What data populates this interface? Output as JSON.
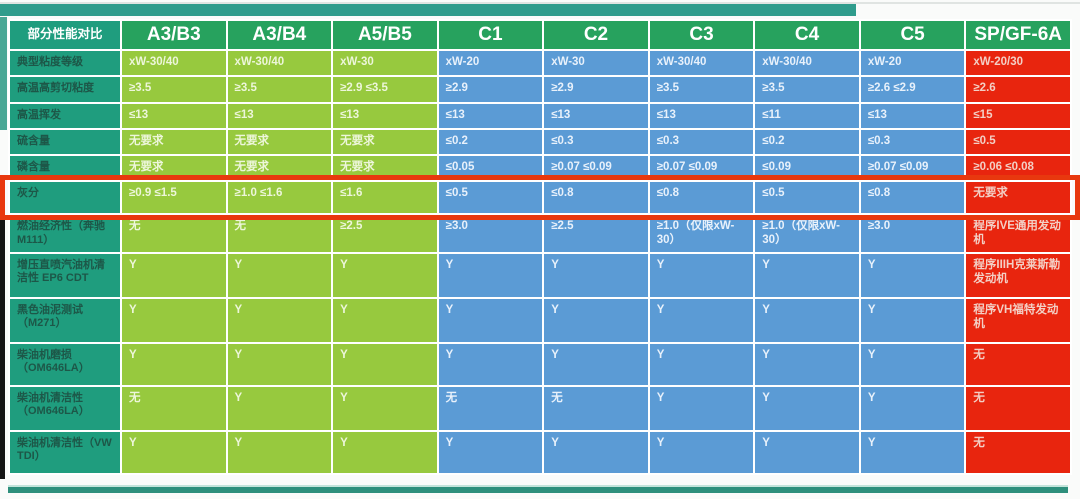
{
  "colors": {
    "header_green": "#27a25e",
    "label_teal": "#1f9d7e",
    "acea_ab_green": "#97c93e",
    "acea_c_blue": "#5b9bd5",
    "api_red": "#e8250e",
    "highlight_red": "#e8380e",
    "top_band_teal": "#2f9c8c",
    "bottom_bar_teal": "#2e8f7c"
  },
  "chart_data": {
    "type": "table",
    "title": "部分性能对比",
    "legend_position": "none",
    "grid": "white cell borders",
    "column_groups": {
      "acea_ab": [
        "A3/B3",
        "A3/B4",
        "A5/B5"
      ],
      "acea_c": [
        "C1",
        "C2",
        "C3",
        "C4",
        "C5"
      ],
      "api": [
        "SP/GF-6A"
      ]
    },
    "columns": [
      {
        "label": "A3/B3",
        "group": "acea_ab"
      },
      {
        "label": "A3/B4",
        "group": "acea_ab"
      },
      {
        "label": "A5/B5",
        "group": "acea_ab"
      },
      {
        "label": "C1",
        "group": "acea_c"
      },
      {
        "label": "C2",
        "group": "acea_c"
      },
      {
        "label": "C3",
        "group": "acea_c"
      },
      {
        "label": "C4",
        "group": "acea_c"
      },
      {
        "label": "C5",
        "group": "acea_c"
      },
      {
        "label": "SP/GF-6A",
        "group": "api"
      }
    ],
    "rows": [
      {
        "label": "典型粘度等级",
        "values": [
          "xW-30/40",
          "xW-30/40",
          "xW-30",
          "xW-20",
          "xW-30",
          "xW-30/40",
          "xW-30/40",
          "xW-20",
          "xW-20/30"
        ]
      },
      {
        "label": "高温高剪切粘度",
        "values": [
          "≥3.5",
          "≥3.5",
          "≥2.9 ≤3.5",
          "≥2.9",
          "≥2.9",
          "≥3.5",
          "≥3.5",
          "≥2.6 ≤2.9",
          "≥2.6"
        ]
      },
      {
        "label": "高温挥发",
        "values": [
          "≤13",
          "≤13",
          "≤13",
          "≤13",
          "≤13",
          "≤13",
          "≤11",
          "≤13",
          "≤15"
        ]
      },
      {
        "label": "硫含量",
        "values": [
          "无要求",
          "无要求",
          "无要求",
          "≤0.2",
          "≤0.3",
          "≤0.3",
          "≤0.2",
          "≤0.3",
          "≤0.5"
        ]
      },
      {
        "label": "磷含量",
        "values": [
          "无要求",
          "无要求",
          "无要求",
          "≤0.05",
          "≥0.07 ≤0.09",
          "≥0.07 ≤0.09",
          "≤0.09",
          "≥0.07 ≤0.09",
          "≥0.06 ≤0.08"
        ]
      },
      {
        "label": "灰分",
        "values": [
          "≥0.9  ≤1.5",
          "≥1.0  ≤1.6",
          "≤1.6",
          "≤0.5",
          "≤0.8",
          "≤0.8",
          "≤0.5",
          "≤0.8",
          "无要求"
        ]
      },
      {
        "label": "燃油经济性（奔驰M111）",
        "values": [
          "无",
          "无",
          "≥2.5",
          "≥3.0",
          "≥2.5",
          "≥1.0（仅限xW-30）",
          "≥1.0（仅限xW-30）",
          "≥3.0",
          "程序IVE通用发动机"
        ]
      },
      {
        "label": "增压直喷汽油机清洁性 EP6 CDT",
        "values": [
          "Y",
          "Y",
          "Y",
          "Y",
          "Y",
          "Y",
          "Y",
          "Y",
          "程序IIIH克莱斯勒发动机"
        ]
      },
      {
        "label": "黑色油泥测试（M271）",
        "values": [
          "Y",
          "Y",
          "Y",
          "Y",
          "Y",
          "Y",
          "Y",
          "Y",
          "程序VH福特发动机"
        ]
      },
      {
        "label": "柴油机磨损（OM646LA）",
        "values": [
          "Y",
          "Y",
          "Y",
          "Y",
          "Y",
          "Y",
          "Y",
          "Y",
          "无"
        ]
      },
      {
        "label": "柴油机清洁性（OM646LA）",
        "values": [
          "无",
          "Y",
          "Y",
          "无",
          "无",
          "Y",
          "Y",
          "Y",
          "无"
        ]
      },
      {
        "label": "柴油机清洁性（VW TDI）",
        "values": [
          "Y",
          "Y",
          "Y",
          "Y",
          "Y",
          "Y",
          "Y",
          "Y",
          "无"
        ]
      }
    ],
    "highlighted_row": "灰分",
    "highlight_row_index": 5
  }
}
